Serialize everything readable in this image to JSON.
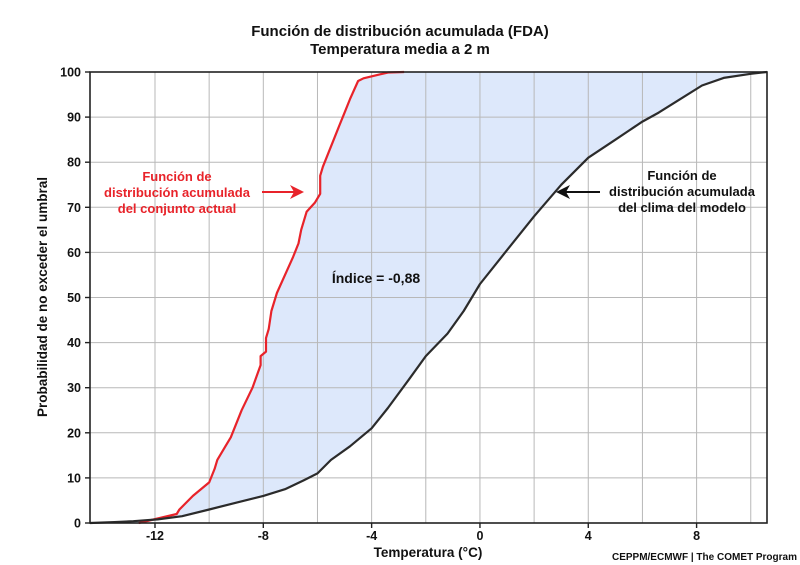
{
  "chart_data": {
    "type": "line",
    "title": "Función de distribución acumulada (FDA)",
    "subtitle": "Temperatura media a 2 m",
    "xlabel": "Temperatura (°C)",
    "ylabel": "Probabilidad de no exceder el umbral",
    "xlim": [
      -14.4,
      10.6
    ],
    "ylim": [
      0,
      100
    ],
    "x_ticks": [
      -12,
      -8,
      -4,
      0,
      4,
      8
    ],
    "y_ticks": [
      0,
      10,
      20,
      30,
      40,
      50,
      60,
      70,
      80,
      90,
      100
    ],
    "x_gridlines": [
      -12,
      -10,
      -8,
      -6,
      -4,
      -2,
      0,
      2,
      4,
      6,
      8,
      10
    ],
    "grid": true,
    "shaded_area_between_series": true,
    "series": [
      {
        "name": "Función de distribución acumulada del conjunto actual",
        "color": "#e8232a",
        "x": [
          -12.6,
          -11.2,
          -11.1,
          -10.6,
          -10.0,
          -9.8,
          -9.7,
          -9.4,
          -9.2,
          -8.8,
          -8.4,
          -8.1,
          -8.1,
          -7.9,
          -7.9,
          -7.8,
          -7.7,
          -7.5,
          -7.2,
          -6.9,
          -6.7,
          -6.6,
          -6.4,
          -6.1,
          -5.9,
          -5.9,
          -5.8,
          -5.6,
          -5.4,
          -5.2,
          -5.0,
          -4.8,
          -4.5,
          -4.3,
          -3.4,
          -2.8
        ],
        "y": [
          0,
          2,
          3,
          6,
          9,
          12,
          14,
          17,
          19,
          25,
          30,
          35,
          37,
          38,
          41,
          43,
          47,
          51,
          55,
          59,
          62,
          65,
          69,
          71,
          73,
          77,
          79,
          82,
          85,
          88,
          91,
          94,
          98,
          98.6,
          99.9,
          100
        ]
      },
      {
        "name": "Función de distribución acumulada del clima del modelo",
        "color": "#2b2b2b",
        "x": [
          -14.4,
          -13.5,
          -12.8,
          -11.9,
          -11.0,
          -10.0,
          -9.0,
          -8.0,
          -7.2,
          -6.5,
          -6.0,
          -5.5,
          -4.8,
          -4.0,
          -3.4,
          -2.6,
          -2.0,
          -1.2,
          -0.6,
          0.0,
          0.8,
          2.0,
          3.0,
          4.0,
          5.0,
          5.5,
          6.0,
          6.6,
          7.4,
          8.2,
          9.0,
          10.0,
          10.6
        ],
        "y": [
          0,
          0.2,
          0.4,
          0.8,
          1.5,
          3,
          4.5,
          6,
          7.5,
          9.5,
          11,
          14,
          17,
          21,
          25.5,
          32,
          37,
          42,
          47,
          53,
          59,
          68,
          75,
          81,
          85,
          87,
          89,
          91,
          94,
          97,
          98.7,
          99.6,
          100
        ]
      }
    ],
    "annotations": [
      {
        "text_lines": [
          "Función de",
          "distribución acumulada",
          "del conjunto actual"
        ],
        "color": "#e8232a",
        "arrow_to": [
          -6.3,
          73
        ]
      },
      {
        "text_lines": [
          "Función de",
          "distribución acumulada",
          "del clima del modelo"
        ],
        "color": "#111111",
        "arrow_to": [
          3.0,
          73
        ]
      },
      {
        "text": "Índice = -0,88"
      }
    ]
  },
  "credit": "CEPPM/ECMWF | The COMET Program",
  "colors": {
    "fill": "#dde8fb",
    "grid": "#b8b8b8",
    "axis": "#222222"
  }
}
